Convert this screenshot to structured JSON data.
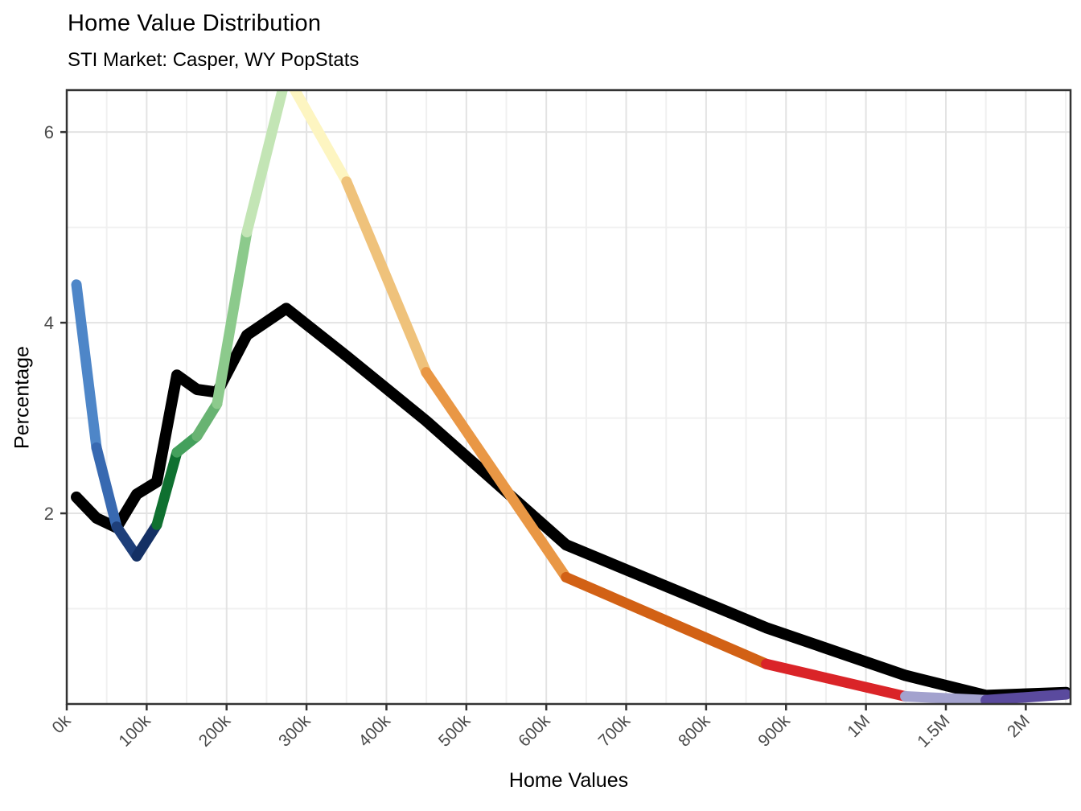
{
  "title": "Home Value Distribution",
  "subtitle": "STI Market: Casper, WY PopStats",
  "chart_data": {
    "type": "line",
    "title": "Home Value Distribution",
    "subtitle": "STI Market: Casper, WY PopStats",
    "xlabel": "Home Values",
    "ylabel": "Percentage",
    "legend": "none",
    "grid": "major-and-minor",
    "x_tick_labels": [
      "0k",
      "100k",
      "200k",
      "300k",
      "400k",
      "500k",
      "600k",
      "700k",
      "800k",
      "900k",
      "1M",
      "1.5M",
      "2M"
    ],
    "x_tick_units": [
      0,
      1,
      2,
      3,
      4,
      5,
      6,
      7,
      8,
      9,
      10,
      11,
      12
    ],
    "x_minor_units": [
      0.5,
      1.5,
      2.5,
      3.5,
      4.5,
      5.5,
      6.5,
      7.5,
      8.5,
      9.5,
      10.5,
      11.5,
      12.5
    ],
    "y_tick_labels": [
      "2",
      "4",
      "6"
    ],
    "y_ticks": [
      2,
      4,
      6
    ],
    "y_minor": [
      1,
      3,
      5
    ],
    "xlim": [
      0,
      12.56
    ],
    "ylim": [
      0,
      6.44
    ],
    "x_units": [
      0.121,
      0.372,
      0.624,
      0.875,
      1.127,
      1.378,
      1.63,
      1.881,
      2.254,
      2.747,
      3.501,
      4.497,
      6.247,
      8.752,
      10.493,
      11.499,
      12.505
    ],
    "series": [
      {
        "name": "colored_line",
        "values": [
          4.4,
          2.69,
          1.86,
          1.55,
          1.88,
          2.64,
          2.81,
          3.15,
          4.95,
          6.6,
          5.48,
          3.48,
          1.33,
          0.42,
          0.08,
          0.04,
          0.1
        ],
        "segment_colors": [
          "#4e86c8",
          "#3869b1",
          "#1e3f7a",
          "#143064",
          "#0f7030",
          "#44a05c",
          "#68b372",
          "#8cca8c",
          "#c3e5b5",
          "#fdf5c1",
          "#efc27b",
          "#e99745",
          "#d26115",
          "#da2428",
          "#a3a2ce",
          "#5a4a9e"
        ],
        "stroke_width": 13
      },
      {
        "name": "black_line",
        "values": [
          2.17,
          1.95,
          1.85,
          2.2,
          2.33,
          3.45,
          3.3,
          3.27,
          3.87,
          4.15,
          3.65,
          2.97,
          1.67,
          0.8,
          0.3,
          0.09,
          0.12
        ],
        "color": "#000000",
        "stroke_width": 14
      }
    ]
  },
  "style_colors": {
    "panel_border": "#333333",
    "tick_mark": "#333333",
    "tick_label": "#4a4a4a",
    "grid_major": "#e3e3e3",
    "grid_minor": "#f0f0f0",
    "background": "#ffffff"
  }
}
